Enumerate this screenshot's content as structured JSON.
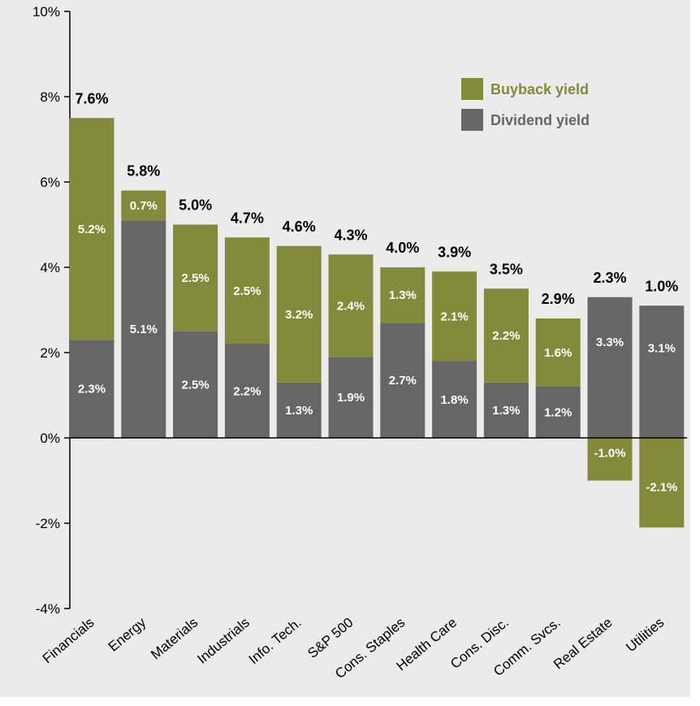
{
  "chart_data": {
    "type": "bar",
    "stacked": true,
    "categories": [
      "Financials",
      "Energy",
      "Materials",
      "Industrials",
      "Info. Tech.",
      "S&P 500",
      "Cons. Staples",
      "Health Care",
      "Cons. Disc.",
      "Comm. Svcs.",
      "Real Estate",
      "Utilities"
    ],
    "series": [
      {
        "name": "Dividend yield",
        "color": "#666666",
        "values": [
          2.3,
          5.1,
          2.5,
          2.2,
          1.3,
          1.9,
          2.7,
          1.8,
          1.3,
          1.2,
          3.3,
          3.1
        ],
        "labels": [
          "2.3%",
          "5.1%",
          "2.5%",
          "2.2%",
          "1.3%",
          "1.9%",
          "2.7%",
          "1.8%",
          "1.3%",
          "1.2%",
          "3.3%",
          "3.1%"
        ]
      },
      {
        "name": "Buyback yield",
        "color": "#838a3a",
        "values": [
          5.2,
          0.7,
          2.5,
          2.5,
          3.2,
          2.4,
          1.3,
          2.1,
          2.2,
          1.6,
          -1.0,
          -2.1
        ],
        "labels": [
          "5.2%",
          "0.7%",
          "2.5%",
          "2.5%",
          "3.2%",
          "2.4%",
          "1.3%",
          "2.1%",
          "2.2%",
          "1.6%",
          "-1.0%",
          "-2.1%"
        ]
      }
    ],
    "totals": [
      "7.6%",
      "5.8%",
      "5.0%",
      "4.7%",
      "4.6%",
      "4.3%",
      "4.0%",
      "3.9%",
      "3.5%",
      "2.9%",
      "2.3%",
      "1.0%"
    ],
    "ylim": [
      -4,
      10
    ],
    "yticks": [
      -4,
      -2,
      0,
      2,
      4,
      6,
      8,
      10
    ],
    "ytick_labels": [
      "-4%",
      "-2%",
      "0%",
      "2%",
      "4%",
      "6%",
      "8%",
      "10%"
    ],
    "legend": {
      "placement": "top-right",
      "items": [
        {
          "name": "Buyback yield",
          "color": "#838a3a",
          "text_color": "#838a3a"
        },
        {
          "name": "Dividend yield",
          "color": "#666666",
          "text_color": "#666666"
        }
      ]
    },
    "grid": false
  }
}
